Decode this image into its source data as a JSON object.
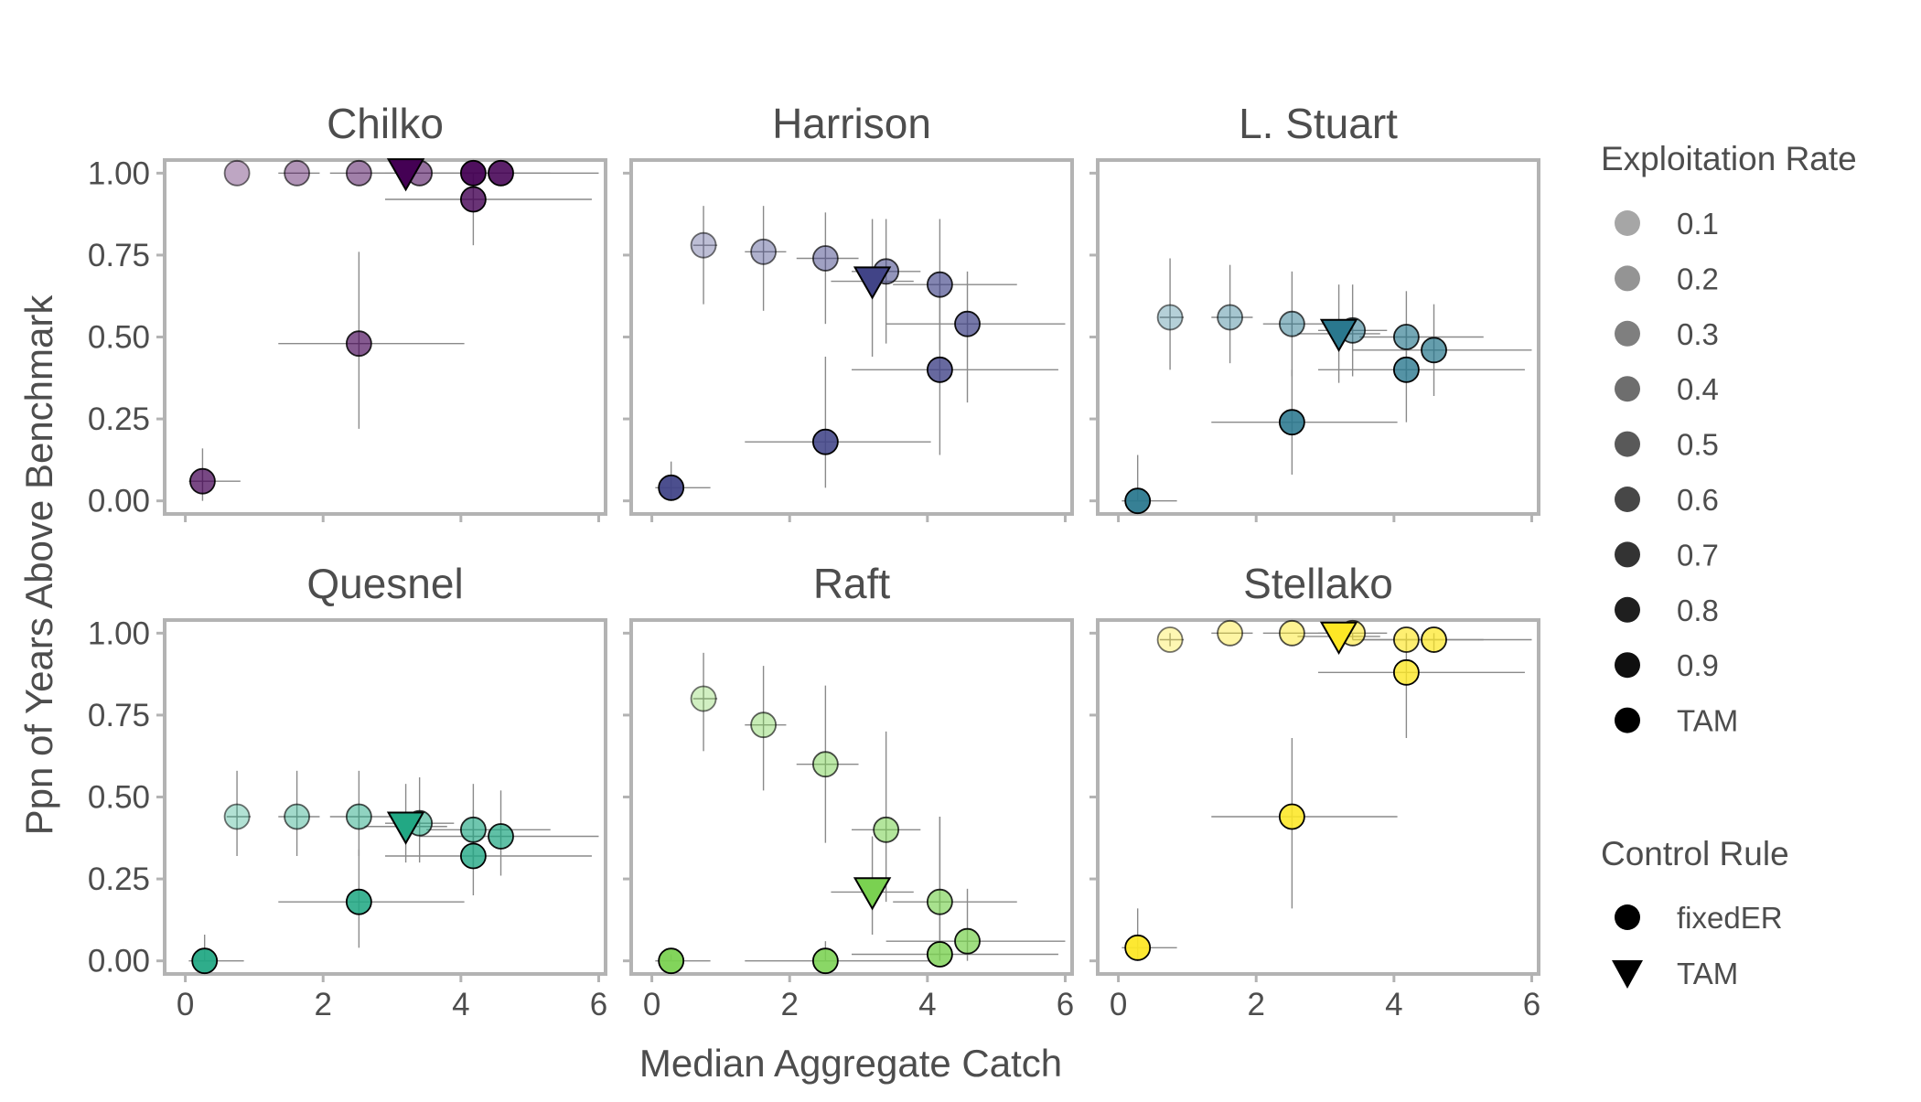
{
  "chart_data": {
    "type": "scatter",
    "xlabel": "Median Aggregate Catch",
    "ylabel": "Ppn of Years Above Benchmark",
    "xlim": [
      -0.3,
      6.1
    ],
    "ylim": [
      -0.04,
      1.04
    ],
    "x_ticks": [
      0,
      2,
      4,
      6
    ],
    "y_ticks": [
      0.0,
      0.25,
      0.5,
      0.75,
      1.0
    ],
    "y_tick_labels": [
      "0.00",
      "0.25",
      "0.50",
      "0.75",
      "1.00"
    ],
    "grid": false,
    "legend_placement": "right",
    "legends": [
      {
        "title": "Exploitation Rate",
        "entries": [
          "0.1",
          "0.2",
          "0.3",
          "0.4",
          "0.5",
          "0.6",
          "0.7",
          "0.8",
          "0.9",
          "TAM"
        ],
        "alphas": [
          0.35,
          0.42,
          0.5,
          0.57,
          0.65,
          0.72,
          0.8,
          0.88,
          0.94,
          1.0
        ]
      },
      {
        "title": "Control Rule",
        "entries": [
          {
            "label": "fixedER",
            "shape": "circle"
          },
          {
            "label": "TAM",
            "shape": "triangle-down"
          }
        ]
      }
    ],
    "panels": [
      {
        "title": "Chilko",
        "color": "#440154",
        "points": [
          {
            "er": "0.1",
            "rule": "fixedER",
            "x": 0.75,
            "y": 1.0,
            "xlo": 0.75,
            "xhi": 0.75,
            "ylo": 1.0,
            "yhi": 1.0
          },
          {
            "er": "0.2",
            "rule": "fixedER",
            "x": 1.62,
            "y": 1.0,
            "xlo": 1.35,
            "xhi": 1.95,
            "ylo": 1.0,
            "yhi": 1.0
          },
          {
            "er": "0.3",
            "rule": "fixedER",
            "x": 2.52,
            "y": 1.0,
            "xlo": 2.1,
            "xhi": 3.0,
            "ylo": 1.0,
            "yhi": 1.0
          },
          {
            "er": "0.4",
            "rule": "fixedER",
            "x": 3.4,
            "y": 1.0,
            "xlo": 2.9,
            "xhi": 3.9,
            "ylo": 1.0,
            "yhi": 1.0
          },
          {
            "er": "0.9",
            "rule": "fixedER",
            "x": 4.18,
            "y": 1.0,
            "xlo": 3.7,
            "xhi": 4.7,
            "ylo": 1.0,
            "yhi": 1.0
          },
          {
            "er": "0.8",
            "rule": "fixedER",
            "x": 4.58,
            "y": 1.0,
            "xlo": 3.5,
            "xhi": 5.3,
            "ylo": 1.0,
            "yhi": 1.0
          },
          {
            "er": "0.7",
            "rule": "fixedER",
            "x": 4.18,
            "y": 0.92,
            "xlo": 2.9,
            "xhi": 5.9,
            "ylo": 0.78,
            "yhi": 1.0
          },
          {
            "er": "0.5",
            "rule": "fixedER",
            "x": 2.52,
            "y": 0.48,
            "xlo": 1.35,
            "xhi": 4.05,
            "ylo": 0.22,
            "yhi": 0.76
          },
          {
            "er": "0.6",
            "rule": "fixedER",
            "x": 0.25,
            "y": 0.06,
            "xlo": 0.05,
            "xhi": 0.8,
            "ylo": 0.0,
            "yhi": 0.16
          },
          {
            "er": "TAM",
            "rule": "TAM",
            "x": 3.2,
            "y": 1.0,
            "xlo": 2.5,
            "xhi": 6.0,
            "ylo": 1.0,
            "yhi": 1.0
          }
        ]
      },
      {
        "title": "Harrison",
        "color": "#414487",
        "points": [
          {
            "er": "0.1",
            "rule": "fixedER",
            "x": 0.75,
            "y": 0.78,
            "xlo": 0.6,
            "xhi": 0.95,
            "ylo": 0.6,
            "yhi": 0.9
          },
          {
            "er": "0.2",
            "rule": "fixedER",
            "x": 1.62,
            "y": 0.76,
            "xlo": 1.35,
            "xhi": 1.95,
            "ylo": 0.58,
            "yhi": 0.9
          },
          {
            "er": "0.3",
            "rule": "fixedER",
            "x": 2.52,
            "y": 0.74,
            "xlo": 2.1,
            "xhi": 3.0,
            "ylo": 0.54,
            "yhi": 0.88
          },
          {
            "er": "0.4",
            "rule": "fixedER",
            "x": 3.4,
            "y": 0.7,
            "xlo": 2.9,
            "xhi": 3.9,
            "ylo": 0.48,
            "yhi": 0.86
          },
          {
            "er": "0.5",
            "rule": "fixedER",
            "x": 4.18,
            "y": 0.66,
            "xlo": 3.5,
            "xhi": 5.3,
            "ylo": 0.46,
            "yhi": 0.86
          },
          {
            "er": "0.6",
            "rule": "fixedER",
            "x": 4.58,
            "y": 0.54,
            "xlo": 3.4,
            "xhi": 6.0,
            "ylo": 0.3,
            "yhi": 0.7
          },
          {
            "er": "0.7",
            "rule": "fixedER",
            "x": 4.18,
            "y": 0.4,
            "xlo": 2.9,
            "xhi": 5.9,
            "ylo": 0.14,
            "yhi": 0.64
          },
          {
            "er": "0.8",
            "rule": "fixedER",
            "x": 2.52,
            "y": 0.18,
            "xlo": 1.35,
            "xhi": 4.05,
            "ylo": 0.04,
            "yhi": 0.44
          },
          {
            "er": "0.9",
            "rule": "fixedER",
            "x": 0.28,
            "y": 0.04,
            "xlo": 0.05,
            "xhi": 0.85,
            "ylo": 0.0,
            "yhi": 0.12
          },
          {
            "er": "TAM",
            "rule": "TAM",
            "x": 3.2,
            "y": 0.67,
            "xlo": 2.6,
            "xhi": 3.8,
            "ylo": 0.44,
            "yhi": 0.86
          }
        ]
      },
      {
        "title": "L. Stuart",
        "color": "#2a788e",
        "points": [
          {
            "er": "0.1",
            "rule": "fixedER",
            "x": 0.75,
            "y": 0.56,
            "xlo": 0.6,
            "xhi": 0.95,
            "ylo": 0.4,
            "yhi": 0.74
          },
          {
            "er": "0.2",
            "rule": "fixedER",
            "x": 1.62,
            "y": 0.56,
            "xlo": 1.35,
            "xhi": 1.95,
            "ylo": 0.42,
            "yhi": 0.72
          },
          {
            "er": "0.3",
            "rule": "fixedER",
            "x": 2.52,
            "y": 0.54,
            "xlo": 2.1,
            "xhi": 3.0,
            "ylo": 0.38,
            "yhi": 0.7
          },
          {
            "er": "0.4",
            "rule": "fixedER",
            "x": 3.4,
            "y": 0.52,
            "xlo": 2.9,
            "xhi": 3.9,
            "ylo": 0.38,
            "yhi": 0.66
          },
          {
            "er": "0.5",
            "rule": "fixedER",
            "x": 4.18,
            "y": 0.5,
            "xlo": 3.5,
            "xhi": 5.3,
            "ylo": 0.38,
            "yhi": 0.64
          },
          {
            "er": "0.6",
            "rule": "fixedER",
            "x": 4.58,
            "y": 0.46,
            "xlo": 3.4,
            "xhi": 6.0,
            "ylo": 0.32,
            "yhi": 0.6
          },
          {
            "er": "0.7",
            "rule": "fixedER",
            "x": 4.18,
            "y": 0.4,
            "xlo": 2.9,
            "xhi": 5.9,
            "ylo": 0.24,
            "yhi": 0.54
          },
          {
            "er": "0.8",
            "rule": "fixedER",
            "x": 2.52,
            "y": 0.24,
            "xlo": 1.35,
            "xhi": 4.05,
            "ylo": 0.08,
            "yhi": 0.4
          },
          {
            "er": "0.9",
            "rule": "fixedER",
            "x": 0.28,
            "y": 0.0,
            "xlo": 0.05,
            "xhi": 0.85,
            "ylo": 0.0,
            "yhi": 0.14
          },
          {
            "er": "TAM",
            "rule": "TAM",
            "x": 3.2,
            "y": 0.51,
            "xlo": 2.6,
            "xhi": 3.8,
            "ylo": 0.36,
            "yhi": 0.66
          }
        ]
      },
      {
        "title": "Quesnel",
        "color": "#22a884",
        "points": [
          {
            "er": "0.1",
            "rule": "fixedER",
            "x": 0.75,
            "y": 0.44,
            "xlo": 0.6,
            "xhi": 0.95,
            "ylo": 0.32,
            "yhi": 0.58
          },
          {
            "er": "0.2",
            "rule": "fixedER",
            "x": 1.62,
            "y": 0.44,
            "xlo": 1.35,
            "xhi": 1.95,
            "ylo": 0.32,
            "yhi": 0.58
          },
          {
            "er": "0.3",
            "rule": "fixedER",
            "x": 2.52,
            "y": 0.44,
            "xlo": 2.1,
            "xhi": 3.0,
            "ylo": 0.32,
            "yhi": 0.58
          },
          {
            "er": "0.4",
            "rule": "fixedER",
            "x": 3.4,
            "y": 0.42,
            "xlo": 2.9,
            "xhi": 3.9,
            "ylo": 0.3,
            "yhi": 0.56
          },
          {
            "er": "0.5",
            "rule": "fixedER",
            "x": 4.18,
            "y": 0.4,
            "xlo": 3.5,
            "xhi": 5.3,
            "ylo": 0.28,
            "yhi": 0.54
          },
          {
            "er": "0.6",
            "rule": "fixedER",
            "x": 4.58,
            "y": 0.38,
            "xlo": 3.4,
            "xhi": 6.0,
            "ylo": 0.26,
            "yhi": 0.52
          },
          {
            "er": "0.7",
            "rule": "fixedER",
            "x": 4.18,
            "y": 0.32,
            "xlo": 2.9,
            "xhi": 5.9,
            "ylo": 0.2,
            "yhi": 0.46
          },
          {
            "er": "0.8",
            "rule": "fixedER",
            "x": 2.52,
            "y": 0.18,
            "xlo": 1.35,
            "xhi": 4.05,
            "ylo": 0.04,
            "yhi": 0.34
          },
          {
            "er": "0.9",
            "rule": "fixedER",
            "x": 0.28,
            "y": 0.0,
            "xlo": 0.05,
            "xhi": 0.85,
            "ylo": 0.0,
            "yhi": 0.08
          },
          {
            "er": "TAM",
            "rule": "TAM",
            "x": 3.2,
            "y": 0.41,
            "xlo": 2.6,
            "xhi": 3.8,
            "ylo": 0.3,
            "yhi": 0.54
          }
        ]
      },
      {
        "title": "Raft",
        "color": "#7ad151",
        "points": [
          {
            "er": "0.1",
            "rule": "fixedER",
            "x": 0.75,
            "y": 0.8,
            "xlo": 0.6,
            "xhi": 0.95,
            "ylo": 0.64,
            "yhi": 0.94
          },
          {
            "er": "0.2",
            "rule": "fixedER",
            "x": 1.62,
            "y": 0.72,
            "xlo": 1.35,
            "xhi": 1.95,
            "ylo": 0.52,
            "yhi": 0.9
          },
          {
            "er": "0.3",
            "rule": "fixedER",
            "x": 2.52,
            "y": 0.6,
            "xlo": 2.1,
            "xhi": 3.0,
            "ylo": 0.36,
            "yhi": 0.84
          },
          {
            "er": "0.4",
            "rule": "fixedER",
            "x": 3.4,
            "y": 0.4,
            "xlo": 2.9,
            "xhi": 3.9,
            "ylo": 0.18,
            "yhi": 0.7
          },
          {
            "er": "0.5",
            "rule": "fixedER",
            "x": 4.18,
            "y": 0.18,
            "xlo": 3.5,
            "xhi": 5.3,
            "ylo": 0.06,
            "yhi": 0.44
          },
          {
            "er": "0.6",
            "rule": "fixedER",
            "x": 4.58,
            "y": 0.06,
            "xlo": 3.4,
            "xhi": 6.0,
            "ylo": 0.0,
            "yhi": 0.22
          },
          {
            "er": "0.7",
            "rule": "fixedER",
            "x": 4.18,
            "y": 0.02,
            "xlo": 2.9,
            "xhi": 5.9,
            "ylo": 0.0,
            "yhi": 0.44
          },
          {
            "er": "0.8",
            "rule": "fixedER",
            "x": 2.52,
            "y": 0.0,
            "xlo": 1.35,
            "xhi": 4.05,
            "ylo": 0.0,
            "yhi": 0.06
          },
          {
            "er": "0.9",
            "rule": "fixedER",
            "x": 0.28,
            "y": 0.0,
            "xlo": 0.05,
            "xhi": 0.85,
            "ylo": 0.0,
            "yhi": 0.02
          },
          {
            "er": "TAM",
            "rule": "TAM",
            "x": 3.2,
            "y": 0.21,
            "xlo": 2.6,
            "xhi": 3.8,
            "ylo": 0.08,
            "yhi": 0.38
          }
        ]
      },
      {
        "title": "Stellako",
        "color": "#fde725",
        "points": [
          {
            "er": "0.1",
            "rule": "fixedER",
            "x": 0.75,
            "y": 0.98,
            "xlo": 0.6,
            "xhi": 0.95,
            "ylo": 0.96,
            "yhi": 1.0
          },
          {
            "er": "0.2",
            "rule": "fixedER",
            "x": 1.62,
            "y": 1.0,
            "xlo": 1.35,
            "xhi": 1.95,
            "ylo": 1.0,
            "yhi": 1.0
          },
          {
            "er": "0.3",
            "rule": "fixedER",
            "x": 2.52,
            "y": 1.0,
            "xlo": 2.1,
            "xhi": 3.0,
            "ylo": 1.0,
            "yhi": 1.0
          },
          {
            "er": "0.4",
            "rule": "fixedER",
            "x": 3.4,
            "y": 1.0,
            "xlo": 2.9,
            "xhi": 3.9,
            "ylo": 0.98,
            "yhi": 1.0
          },
          {
            "er": "0.5",
            "rule": "fixedER",
            "x": 4.18,
            "y": 0.98,
            "xlo": 3.5,
            "xhi": 5.3,
            "ylo": 0.94,
            "yhi": 1.0
          },
          {
            "er": "0.6",
            "rule": "fixedER",
            "x": 4.58,
            "y": 0.98,
            "xlo": 3.4,
            "xhi": 6.0,
            "ylo": 0.94,
            "yhi": 1.0
          },
          {
            "er": "0.7",
            "rule": "fixedER",
            "x": 4.18,
            "y": 0.88,
            "xlo": 2.9,
            "xhi": 5.9,
            "ylo": 0.68,
            "yhi": 0.98
          },
          {
            "er": "0.8",
            "rule": "fixedER",
            "x": 2.52,
            "y": 0.44,
            "xlo": 1.35,
            "xhi": 4.05,
            "ylo": 0.16,
            "yhi": 0.68
          },
          {
            "er": "0.9",
            "rule": "fixedER",
            "x": 0.28,
            "y": 0.04,
            "xlo": 0.05,
            "xhi": 0.85,
            "ylo": 0.0,
            "yhi": 0.16
          },
          {
            "er": "TAM",
            "rule": "TAM",
            "x": 3.2,
            "y": 0.99,
            "xlo": 2.6,
            "xhi": 3.8,
            "ylo": 0.96,
            "yhi": 1.0
          }
        ]
      }
    ]
  }
}
